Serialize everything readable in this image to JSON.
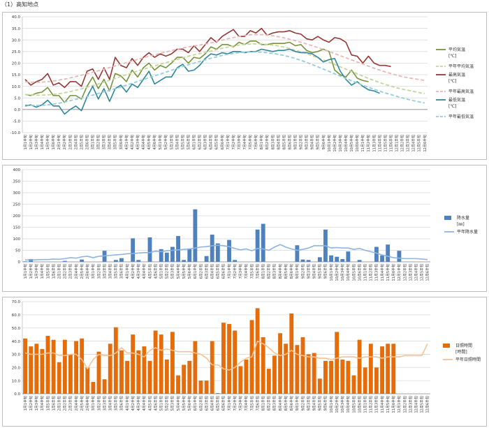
{
  "page": {
    "title": "（1）高知地点"
  },
  "theme": {
    "c_avg": "#77933c",
    "c_avg_norm": "#c3d69b",
    "c_max": "#953735",
    "c_max_norm": "#e6b9b8",
    "c_min": "#31859c",
    "c_min_norm": "#93cddd",
    "c_rain": "#4f81bd",
    "c_rain_norm": "#8eb4e3",
    "c_sun": "#e46c0a",
    "c_sun_norm": "#fac090",
    "grid": "#d9d9d9"
  },
  "x_labels": [
    "1月1半旬",
    "1月2半旬",
    "1月3半旬",
    "1月4半旬",
    "1月5半旬",
    "1月6半旬",
    "2月1半旬",
    "2月2半旬",
    "2月3半旬",
    "2月4半旬",
    "2月5半旬",
    "2月6半旬",
    "3月1半旬",
    "3月2半旬",
    "3月3半旬",
    "3月4半旬",
    "3月5半旬",
    "3月6半旬",
    "4月1半旬",
    "4月2半旬",
    "4月3半旬",
    "4月4半旬",
    "4月5半旬",
    "4月6半旬",
    "5月1半旬",
    "5月2半旬",
    "5月3半旬",
    "5月4半旬",
    "5月5半旬",
    "5月6半旬",
    "6月1半旬",
    "6月2半旬",
    "6月3半旬",
    "6月4半旬",
    "6月5半旬",
    "6月6半旬",
    "7月1半旬",
    "7月2半旬",
    "7月3半旬",
    "7月4半旬",
    "7月5半旬",
    "7月6半旬",
    "8月1半旬",
    "8月2半旬",
    "8月3半旬",
    "8月4半旬",
    "8月5半旬",
    "8月6半旬",
    "9月1半旬",
    "9月2半旬",
    "9月3半旬",
    "9月4半旬",
    "9月5半旬",
    "9月6半旬",
    "10月1半旬",
    "10月2半旬",
    "10月3半旬",
    "10月4半旬",
    "10月5半旬",
    "10月6半旬",
    "11月1半旬",
    "11月2半旬",
    "11月3半旬",
    "11月4半旬",
    "11月5半旬",
    "11月6半旬",
    "12月1半旬",
    "12月2半旬",
    "12月3半旬",
    "12月4半旬",
    "12月5半旬",
    "12月6半旬"
  ],
  "chart_data": [
    {
      "type": "line",
      "ylim": [
        -10,
        40
      ],
      "yticks": [
        "-10.0",
        "-5.0",
        "0.0",
        "5.0",
        "10.0",
        "15.0",
        "20.0",
        "25.0",
        "30.0",
        "35.0",
        "40.0"
      ],
      "series": [
        {
          "name": "平均気温\n[℃]",
          "color_key": "c_avg",
          "dashed": false,
          "values": [
            6.5,
            6,
            7,
            7.5,
            9.5,
            6,
            6,
            3,
            6,
            6,
            4.5,
            10,
            14,
            9,
            13,
            8,
            15.5,
            14.5,
            12,
            17,
            14,
            18,
            20,
            17,
            19,
            18,
            20,
            22.5,
            22.5,
            20,
            22.5,
            22,
            24,
            27,
            26,
            28,
            28,
            27,
            29,
            28,
            29.5,
            29.5,
            28,
            28,
            28.5,
            28.5,
            28.5,
            29,
            27.5,
            28,
            25.5,
            24.5,
            25,
            26,
            25,
            17,
            15,
            14,
            17,
            13.5,
            12.5,
            12,
            null,
            null,
            null,
            null,
            null,
            null,
            null,
            null,
            null,
            null
          ]
        },
        {
          "name": "平年平均気温",
          "color_key": "c_avg_norm",
          "dashed": true,
          "values": [
            6.5,
            6.3,
            6.2,
            6.2,
            6.3,
            6.5,
            6.8,
            7.2,
            7.7,
            8.3,
            8.9,
            9.6,
            10.3,
            11,
            11.8,
            12.6,
            13.4,
            14.2,
            15,
            15.8,
            16.6,
            17.4,
            18.1,
            18.8,
            19.5,
            20.2,
            20.9,
            21.6,
            22.3,
            23,
            23.6,
            24.1,
            24.6,
            25.2,
            25.8,
            26.4,
            26.9,
            27.4,
            27.8,
            28.1,
            28.2,
            28.3,
            28.3,
            28.1,
            27.8,
            27.4,
            26.9,
            26.3,
            25.6,
            24.9,
            24.1,
            23.2,
            22.3,
            21.4,
            20.4,
            19.4,
            18.4,
            17.4,
            16.4,
            15.4,
            14.4,
            13.4,
            12.5,
            11.6,
            10.8,
            10.1,
            9.4,
            8.8,
            8.3,
            7.8,
            7.3,
            6.9
          ]
        },
        {
          "name": "最高気温\n[℃]",
          "color_key": "c_max",
          "dashed": false,
          "values": [
            13,
            10.5,
            12,
            13,
            15.5,
            10.5,
            11.5,
            9.5,
            12,
            12,
            10,
            16.5,
            17.5,
            13,
            18,
            13,
            22.5,
            19,
            18,
            22,
            19,
            22.5,
            24.5,
            22.5,
            24,
            23,
            24,
            26,
            26,
            24.5,
            27.5,
            25,
            28,
            31,
            29,
            31.5,
            33,
            34.5,
            31.5,
            31.5,
            34,
            33,
            35,
            32,
            33,
            33.5,
            33.5,
            34,
            33,
            32.5,
            30.5,
            30,
            31.5,
            30,
            29,
            31,
            30.5,
            29,
            23.5,
            23,
            20,
            23,
            20,
            19,
            19,
            18.5,
            null,
            null,
            null,
            null,
            null,
            null
          ]
        },
        {
          "name": "平年最高気温",
          "color_key": "c_max_norm",
          "dashed": true,
          "values": [
            12,
            11.8,
            11.7,
            11.8,
            12,
            12.3,
            12.7,
            13.1,
            13.6,
            14.2,
            14.8,
            15.4,
            16,
            16.7,
            17.4,
            18.1,
            18.8,
            19.5,
            20.2,
            20.9,
            21.6,
            22.3,
            23,
            23.6,
            24.2,
            24.8,
            25.4,
            26,
            26.5,
            27,
            27.4,
            27.8,
            28.2,
            28.7,
            29.3,
            29.9,
            30.5,
            31,
            31.5,
            31.9,
            32.2,
            32.3,
            32.3,
            32.1,
            31.8,
            31.4,
            30.9,
            30.3,
            29.7,
            29,
            28.3,
            27.5,
            26.7,
            25.9,
            25,
            24.1,
            23.2,
            22.3,
            21.4,
            20.5,
            19.6,
            18.7,
            17.8,
            17,
            16.2,
            15.5,
            14.8,
            14.2,
            13.7,
            13.3,
            12.9,
            12.5
          ]
        },
        {
          "name": "最低気温\n[℃]",
          "color_key": "c_min",
          "dashed": false,
          "values": [
            1.5,
            2,
            1,
            2,
            4,
            1.5,
            1.5,
            -2,
            0,
            1.5,
            -0.5,
            5.5,
            10,
            4.5,
            9,
            3.5,
            9,
            10.5,
            7.5,
            11,
            9.5,
            13,
            16.5,
            11,
            12.5,
            14,
            14,
            18,
            19.5,
            16.5,
            17,
            19,
            22,
            24,
            23.5,
            24.5,
            24,
            25,
            25,
            24.5,
            25,
            25,
            26,
            25.5,
            25,
            25.5,
            25.5,
            26,
            25,
            24.5,
            24.5,
            24,
            22.5,
            20.5,
            21.5,
            22,
            16.5,
            13,
            10.5,
            12,
            10,
            8.5,
            8,
            7,
            null,
            null,
            null,
            null,
            null,
            null,
            null,
            null
          ]
        },
        {
          "name": "平年最低気温",
          "color_key": "c_min_norm",
          "dashed": true,
          "values": [
            2,
            1.8,
            1.7,
            1.8,
            2,
            2.3,
            2.7,
            3.2,
            3.8,
            4.4,
            5,
            5.6,
            6.2,
            6.9,
            7.6,
            8.3,
            9,
            9.7,
            10.5,
            11.3,
            12.1,
            12.9,
            13.7,
            14.5,
            15.3,
            16.1,
            16.9,
            17.7,
            18.5,
            19.3,
            20,
            20.7,
            21.4,
            22.1,
            22.7,
            23.3,
            23.8,
            24.2,
            24.5,
            24.7,
            24.8,
            24.8,
            24.7,
            24.5,
            24.2,
            23.8,
            23.3,
            22.7,
            22,
            21.2,
            20.3,
            19.4,
            18.4,
            17.4,
            16.4,
            15.4,
            14.4,
            13.4,
            12.4,
            11.4,
            10.5,
            9.6,
            8.7,
            7.9,
            7.1,
            6.4,
            5.7,
            5,
            4.4,
            3.8,
            3.3,
            2.8
          ]
        }
      ]
    },
    {
      "type": "bar",
      "ylim": [
        0,
        400
      ],
      "yticks": [
        "0",
        "50",
        "100",
        "150",
        "200",
        "250",
        "300",
        "350",
        "400"
      ],
      "series": [
        {
          "name": "降水量\n[㎜]",
          "color_key": "c_rain",
          "kind": "bar",
          "values": [
            2,
            12,
            0,
            0,
            0,
            0,
            0,
            4,
            0,
            0,
            10,
            0,
            0,
            0,
            48,
            0,
            8,
            16,
            0,
            102,
            8,
            0,
            106,
            0,
            55,
            40,
            65,
            112,
            8,
            58,
            228,
            0,
            25,
            118,
            80,
            0,
            95,
            8,
            0,
            0,
            0,
            140,
            165,
            0,
            0,
            0,
            0,
            0,
            72,
            10,
            8,
            0,
            20,
            140,
            28,
            22,
            12,
            45,
            0,
            8,
            0,
            0,
            65,
            28,
            75,
            0,
            48,
            0,
            0,
            0,
            0,
            0
          ]
        },
        {
          "name": "平年降水量",
          "color_key": "c_rain_norm",
          "kind": "line",
          "values": [
            8,
            8,
            9,
            10,
            10,
            12,
            11,
            14,
            18,
            16,
            22,
            24,
            18,
            24,
            26,
            28,
            30,
            32,
            35,
            36,
            38,
            40,
            40,
            46,
            44,
            48,
            50,
            52,
            54,
            56,
            60,
            64,
            66,
            70,
            72,
            70,
            66,
            58,
            52,
            56,
            48,
            58,
            56,
            50,
            64,
            75,
            64,
            56,
            50,
            54,
            60,
            70,
            70,
            70,
            60,
            62,
            60,
            60,
            54,
            58,
            50,
            44,
            38,
            30,
            24,
            18,
            16,
            14,
            14,
            14,
            12,
            10
          ]
        }
      ]
    },
    {
      "type": "bar",
      "ylim": [
        0,
        70
      ],
      "yticks": [
        "0.0",
        "10.0",
        "20.0",
        "30.0",
        "40.0",
        "50.0",
        "60.0",
        "70.0"
      ],
      "series": [
        {
          "name": "日照時間\n[時間]",
          "color_key": "c_sun",
          "kind": "bar",
          "values": [
            42,
            36,
            38,
            34,
            44,
            41,
            24,
            41,
            30,
            40,
            42,
            20,
            9,
            32,
            11,
            38,
            50.5,
            33,
            25,
            45,
            33,
            36,
            25,
            48,
            45,
            26,
            47,
            14,
            22,
            25,
            40,
            10,
            10,
            40,
            0.5,
            54,
            53,
            48,
            21,
            26,
            56,
            65,
            43,
            19,
            29,
            46,
            38,
            61,
            37,
            43,
            30,
            31,
            11.5,
            25,
            25,
            47,
            26,
            25,
            14,
            41,
            20,
            38,
            20,
            36,
            38,
            38,
            0,
            0,
            0,
            0,
            0,
            0
          ]
        },
        {
          "name": "平年日照時間",
          "color_key": "c_sun_norm",
          "kind": "line",
          "values": [
            31,
            30,
            30,
            30,
            31,
            31,
            29,
            29,
            30,
            30,
            26,
            19,
            26,
            30,
            29,
            29,
            31,
            35,
            31,
            31,
            30,
            28,
            33,
            35,
            33,
            34,
            33,
            32,
            32,
            32,
            31,
            30,
            27,
            22,
            22,
            19,
            18,
            20,
            24,
            27,
            28,
            40,
            38,
            35,
            31,
            29,
            30,
            33,
            30,
            29,
            28,
            28,
            27,
            27,
            26,
            27,
            28,
            28,
            28,
            27,
            28,
            28,
            28,
            27,
            28,
            28,
            28,
            29,
            29,
            29,
            29,
            38
          ]
        }
      ]
    }
  ]
}
